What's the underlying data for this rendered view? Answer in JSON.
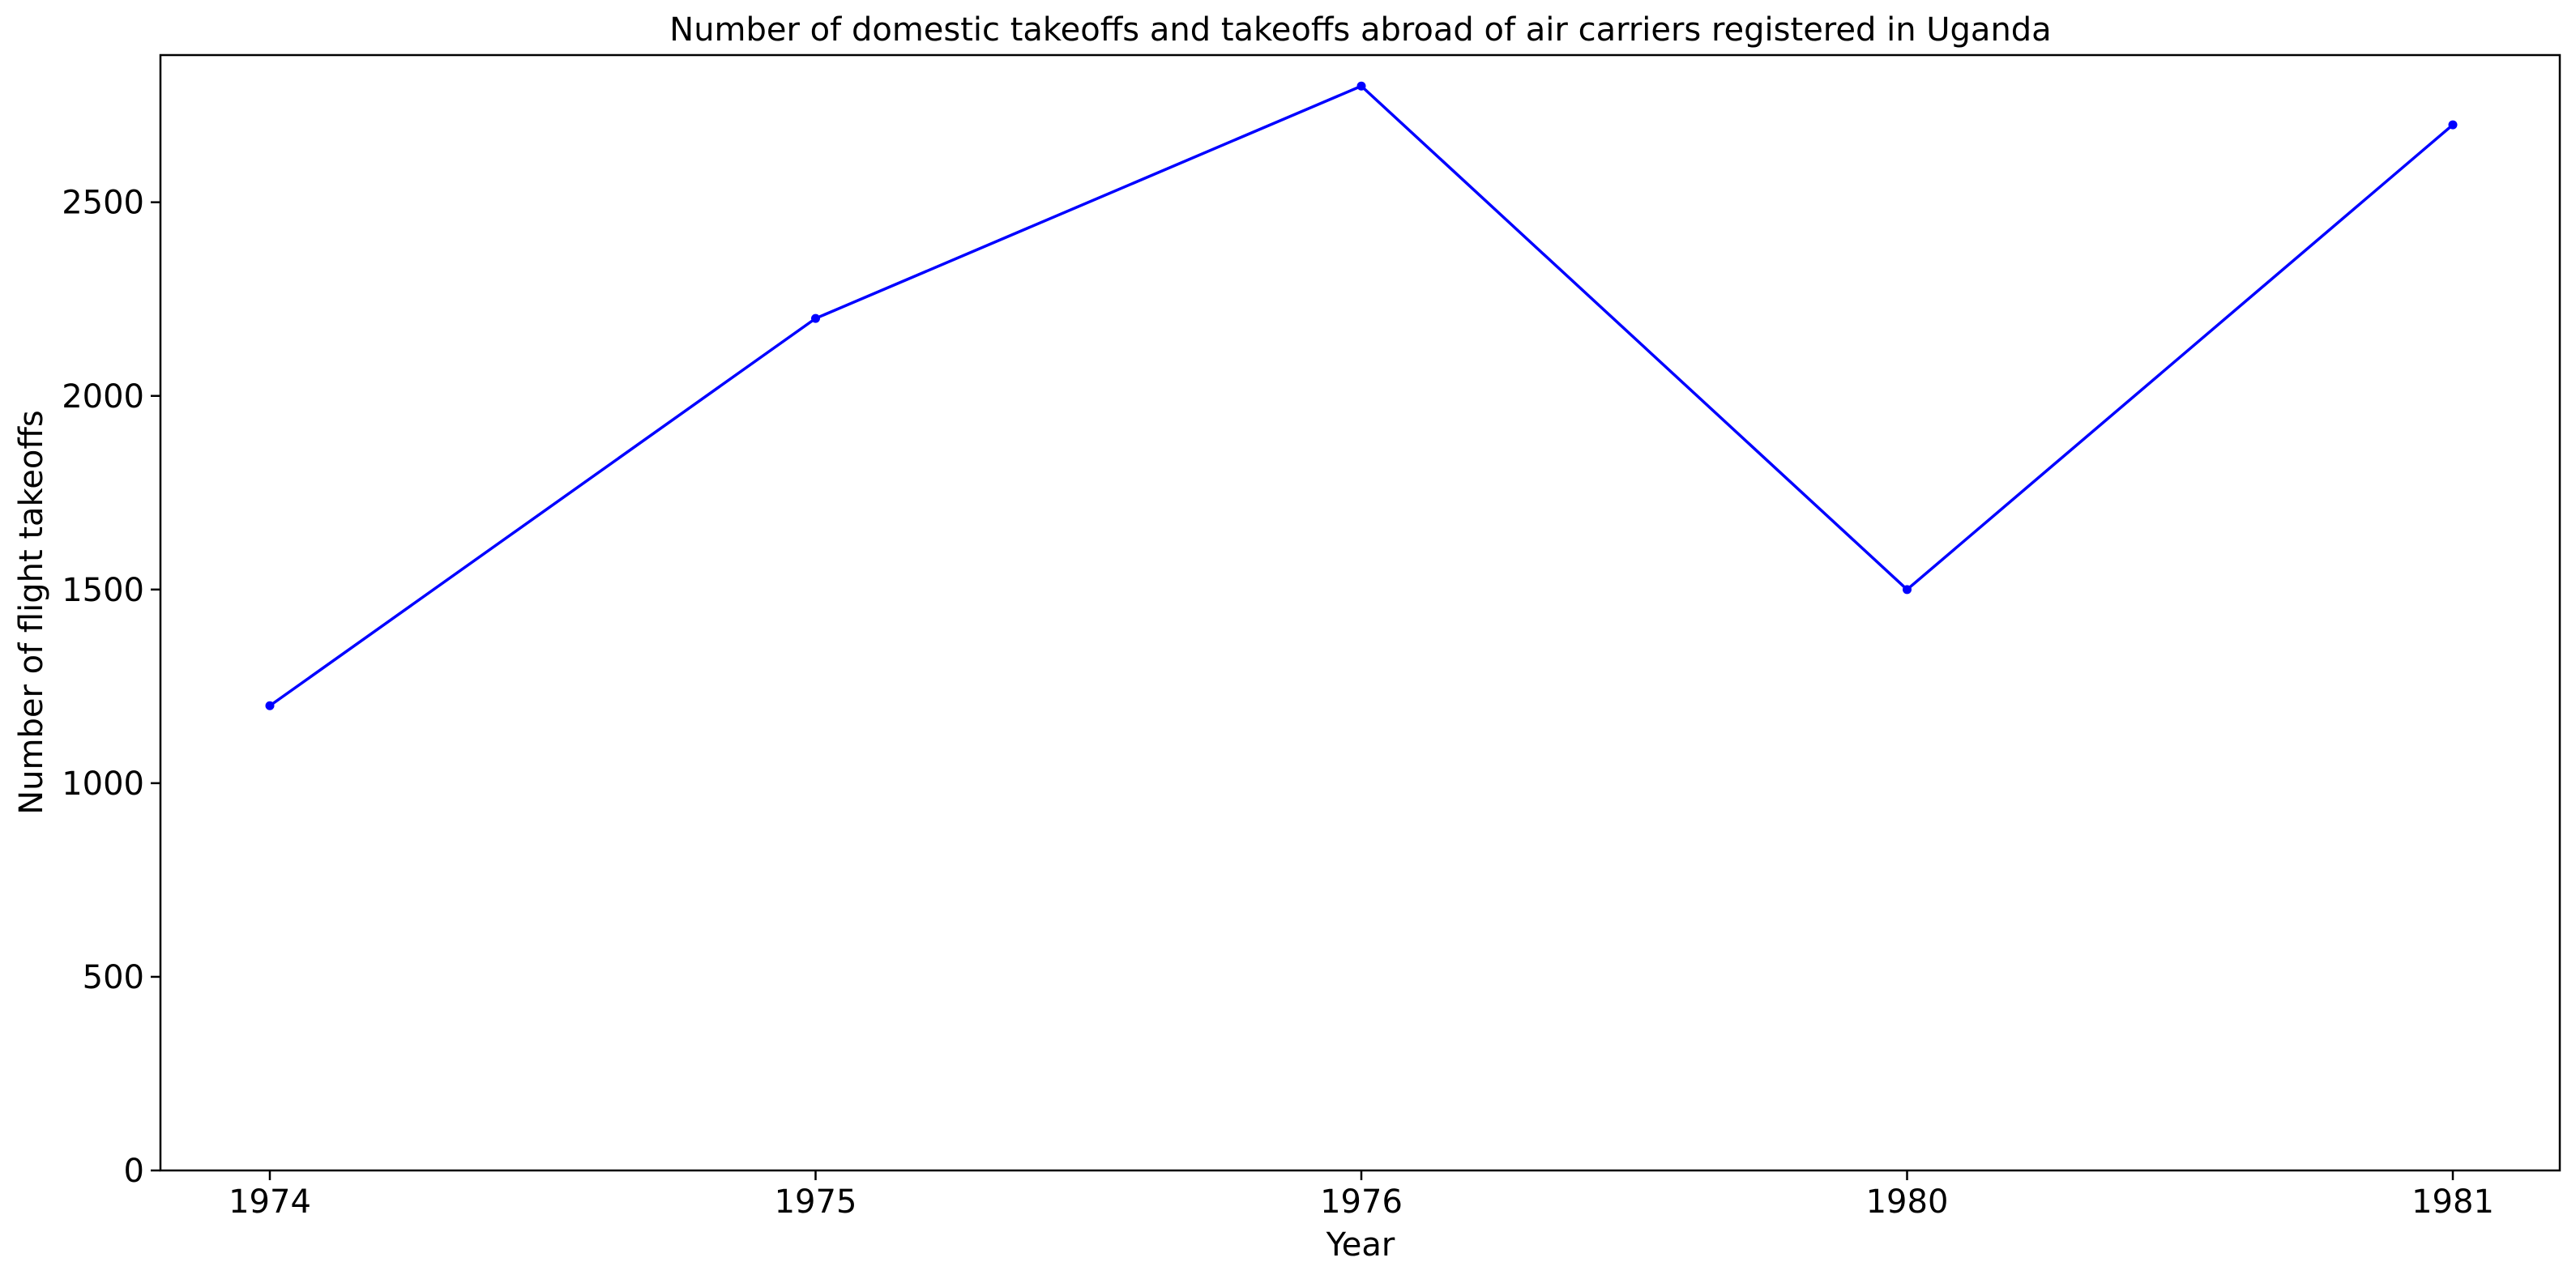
{
  "chart_data": {
    "type": "line",
    "title": "Number of domestic takeoffs and takeoffs abroad of air carriers registered in Uganda",
    "xlabel": "Year",
    "ylabel": "Number of flight takeoffs",
    "categories": [
      "1974",
      "1975",
      "1976",
      "1980",
      "1981"
    ],
    "series": [
      {
        "values": [
          1200,
          2200,
          2800,
          1500,
          2700
        ],
        "color": "#0000ff",
        "marker": "dot"
      }
    ],
    "ylim": [
      0,
      2880
    ],
    "yticks": [
      0,
      500,
      1000,
      1500,
      2000,
      2500
    ],
    "grid": false,
    "legend": "none"
  }
}
